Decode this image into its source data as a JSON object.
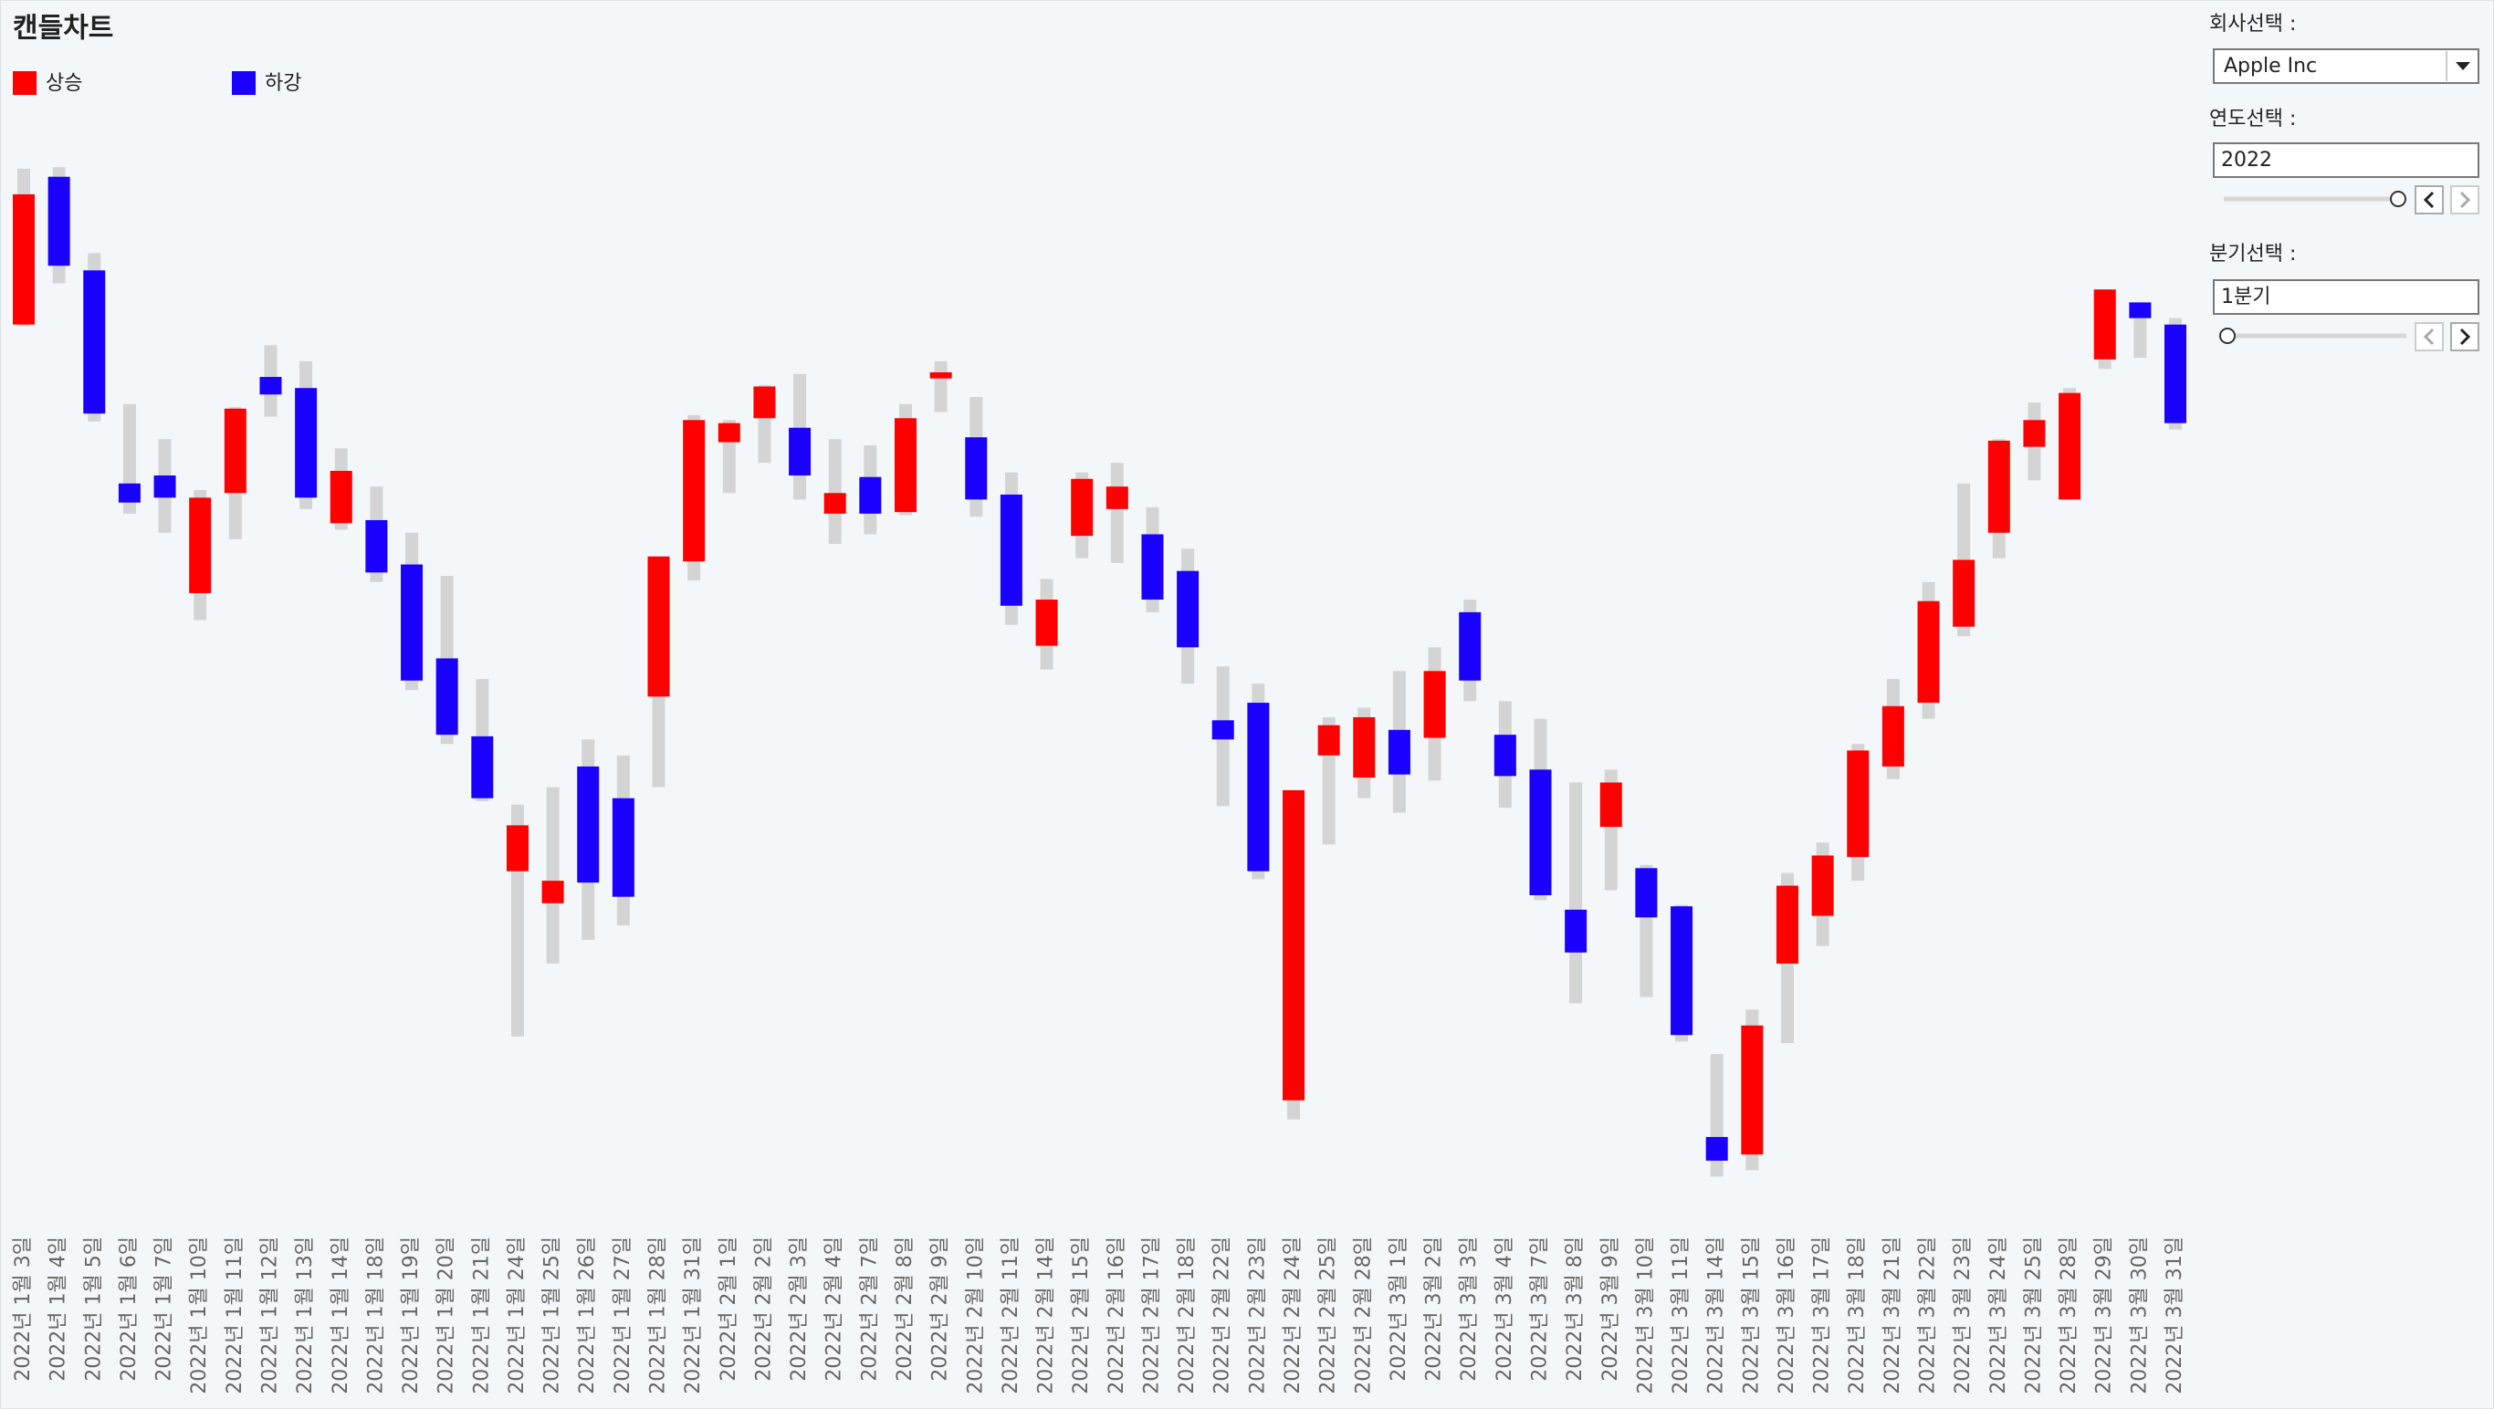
{
  "chart_data": {
    "type": "candlestick",
    "title": "캔들차트",
    "legend": [
      {
        "name": "상승",
        "color": "#ff0000"
      },
      {
        "name": "하강",
        "color": "#1a00ff"
      }
    ],
    "wick_color": "#d4d4d4",
    "categories": [
      "2022년 1월 3일",
      "2022년 1월 4일",
      "2022년 1월 5일",
      "2022년 1월 6일",
      "2022년 1월 7일",
      "2022년 1월 10일",
      "2022년 1월 11일",
      "2022년 1월 12일",
      "2022년 1월 13일",
      "2022년 1월 14일",
      "2022년 1월 18일",
      "2022년 1월 19일",
      "2022년 1월 20일",
      "2022년 1월 21일",
      "2022년 1월 24일",
      "2022년 1월 25일",
      "2022년 1월 26일",
      "2022년 1월 27일",
      "2022년 1월 28일",
      "2022년 1월 31일",
      "2022년 2월 1일",
      "2022년 2월 2일",
      "2022년 2월 3일",
      "2022년 2월 4일",
      "2022년 2월 7일",
      "2022년 2월 8일",
      "2022년 2월 9일",
      "2022년 2월 10일",
      "2022년 2월 11일",
      "2022년 2월 14일",
      "2022년 2월 15일",
      "2022년 2월 16일",
      "2022년 2월 17일",
      "2022년 2월 18일",
      "2022년 2월 22일",
      "2022년 2월 23일",
      "2022년 2월 24일",
      "2022년 2월 25일",
      "2022년 2월 28일",
      "2022년 3월 1일",
      "2022년 3월 2일",
      "2022년 3월 3일",
      "2022년 3월 4일",
      "2022년 3월 7일",
      "2022년 3월 8일",
      "2022년 3월 9일",
      "2022년 3월 10일",
      "2022년 3월 11일",
      "2022년 3월 14일",
      "2022년 3월 15일",
      "2022년 3월 16일",
      "2022년 3월 17일",
      "2022년 3월 18일",
      "2022년 3월 21일",
      "2022년 3월 22일",
      "2022년 3월 23일",
      "2022년 3월 24일",
      "2022년 3월 25일",
      "2022년 3월 28일",
      "2022년 3월 29일",
      "2022년 3월 30일",
      "2022년 3월 31일"
    ],
    "open": [
      177.82,
      182.62,
      179.58,
      172.66,
      172.92,
      169.1,
      172.35,
      176.12,
      175.76,
      171.37,
      171.47,
      170.03,
      166.98,
      164.45,
      160.07,
      159.03,
      163.47,
      162.44,
      165.74,
      170.13,
      174.0,
      174.78,
      174.47,
      171.68,
      172.87,
      171.73,
      176.07,
      174.16,
      172.3,
      167.39,
      170.96,
      171.83,
      171.01,
      169.82,
      164.97,
      165.54,
      152.63,
      163.83,
      163.11,
      164.66,
      164.4,
      168.48,
      164.5,
      163.37,
      158.82,
      161.51,
      160.17,
      158.93,
      151.44,
      150.87,
      157.07,
      158.62,
      160.53,
      163.47,
      165.54,
      168.01,
      171.06,
      173.85,
      172.14,
      176.69,
      178.54,
      177.82
    ],
    "high": [
      182.88,
      182.93,
      180.14,
      175.24,
      174.1,
      172.45,
      175.14,
      177.15,
      176.63,
      173.8,
      172.56,
      171.06,
      169.66,
      166.31,
      162.23,
      162.8,
      164.35,
      163.83,
      170.29,
      174.88,
      174.72,
      175.86,
      176.22,
      174.1,
      173.9,
      175.24,
      176.63,
      175.47,
      173.02,
      169.56,
      173.02,
      173.33,
      171.89,
      170.54,
      166.72,
      166.16,
      162.7,
      165.07,
      165.38,
      166.57,
      167.34,
      168.89,
      165.59,
      165.02,
      162.95,
      163.37,
      160.27,
      158.98,
      154.13,
      155.58,
      160.01,
      161.0,
      164.2,
      166.31,
      169.46,
      172.66,
      174.1,
      175.29,
      175.76,
      178.96,
      178.54,
      178.03
    ],
    "low": [
      177.77,
      179.16,
      174.67,
      171.68,
      171.06,
      168.22,
      170.85,
      174.83,
      171.83,
      171.16,
      169.46,
      165.95,
      164.2,
      162.34,
      154.7,
      157.07,
      157.84,
      158.31,
      162.8,
      169.51,
      172.35,
      173.33,
      172.14,
      170.7,
      171.01,
      171.63,
      174.98,
      171.58,
      168.07,
      166.62,
      170.23,
      170.08,
      168.48,
      166.16,
      162.18,
      159.81,
      152.01,
      160.94,
      162.44,
      161.97,
      163.01,
      165.59,
      162.13,
      159.13,
      155.78,
      159.45,
      155.98,
      154.54,
      150.15,
      150.36,
      154.49,
      157.64,
      159.76,
      163.06,
      165.02,
      167.7,
      170.23,
      172.76,
      172.14,
      176.38,
      176.74,
      174.41
    ],
    "close": [
      182.05,
      179.73,
      174.93,
      172.04,
      172.2,
      172.2,
      175.09,
      175.55,
      172.2,
      173.07,
      169.77,
      166.26,
      164.5,
      162.44,
      161.56,
      159.76,
      159.7,
      159.24,
      170.29,
      174.72,
      174.62,
      175.81,
      172.92,
      172.35,
      171.68,
      174.78,
      176.27,
      172.14,
      168.69,
      168.89,
      172.81,
      172.56,
      168.89,
      167.34,
      164.35,
      160.07,
      162.7,
      164.81,
      165.07,
      163.21,
      166.57,
      166.26,
      163.16,
      159.29,
      157.43,
      162.95,
      158.57,
      154.75,
      150.67,
      155.06,
      159.6,
      160.58,
      163.99,
      165.43,
      168.84,
      170.18,
      174.05,
      174.72,
      175.6,
      178.96,
      178.03,
      174.62
    ],
    "ylim": [
      149.6,
      183.5
    ]
  },
  "controls": {
    "company": {
      "label": "회사선택 :",
      "value": "Apple Inc"
    },
    "year": {
      "label": "연도선택 :",
      "value": "2022"
    },
    "quarter": {
      "label": "분기선택 :",
      "value": "1분기"
    }
  }
}
